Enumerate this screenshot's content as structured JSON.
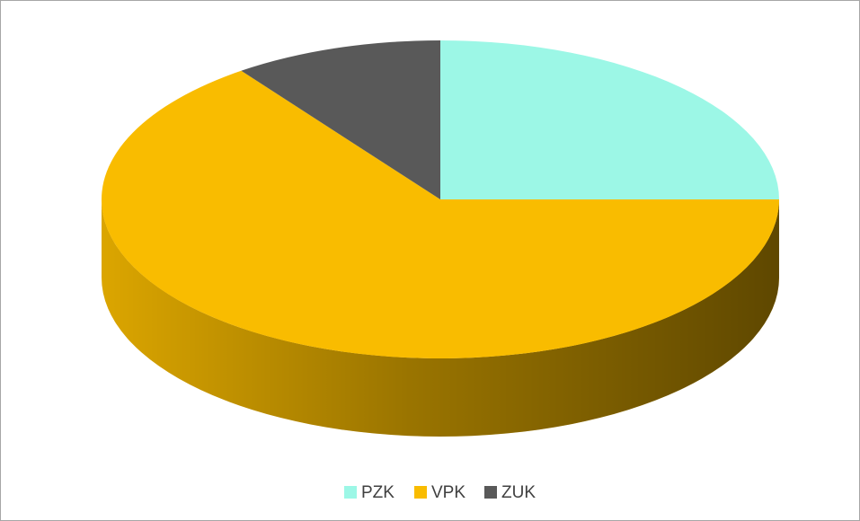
{
  "chart_data": {
    "type": "pie3d",
    "categories": [
      "PZK",
      "VPK",
      "ZUK"
    ],
    "values": [
      25,
      65,
      10
    ],
    "colors": [
      "#9cf7e6",
      "#f9bc00",
      "#595959"
    ],
    "legend": "bottom"
  }
}
